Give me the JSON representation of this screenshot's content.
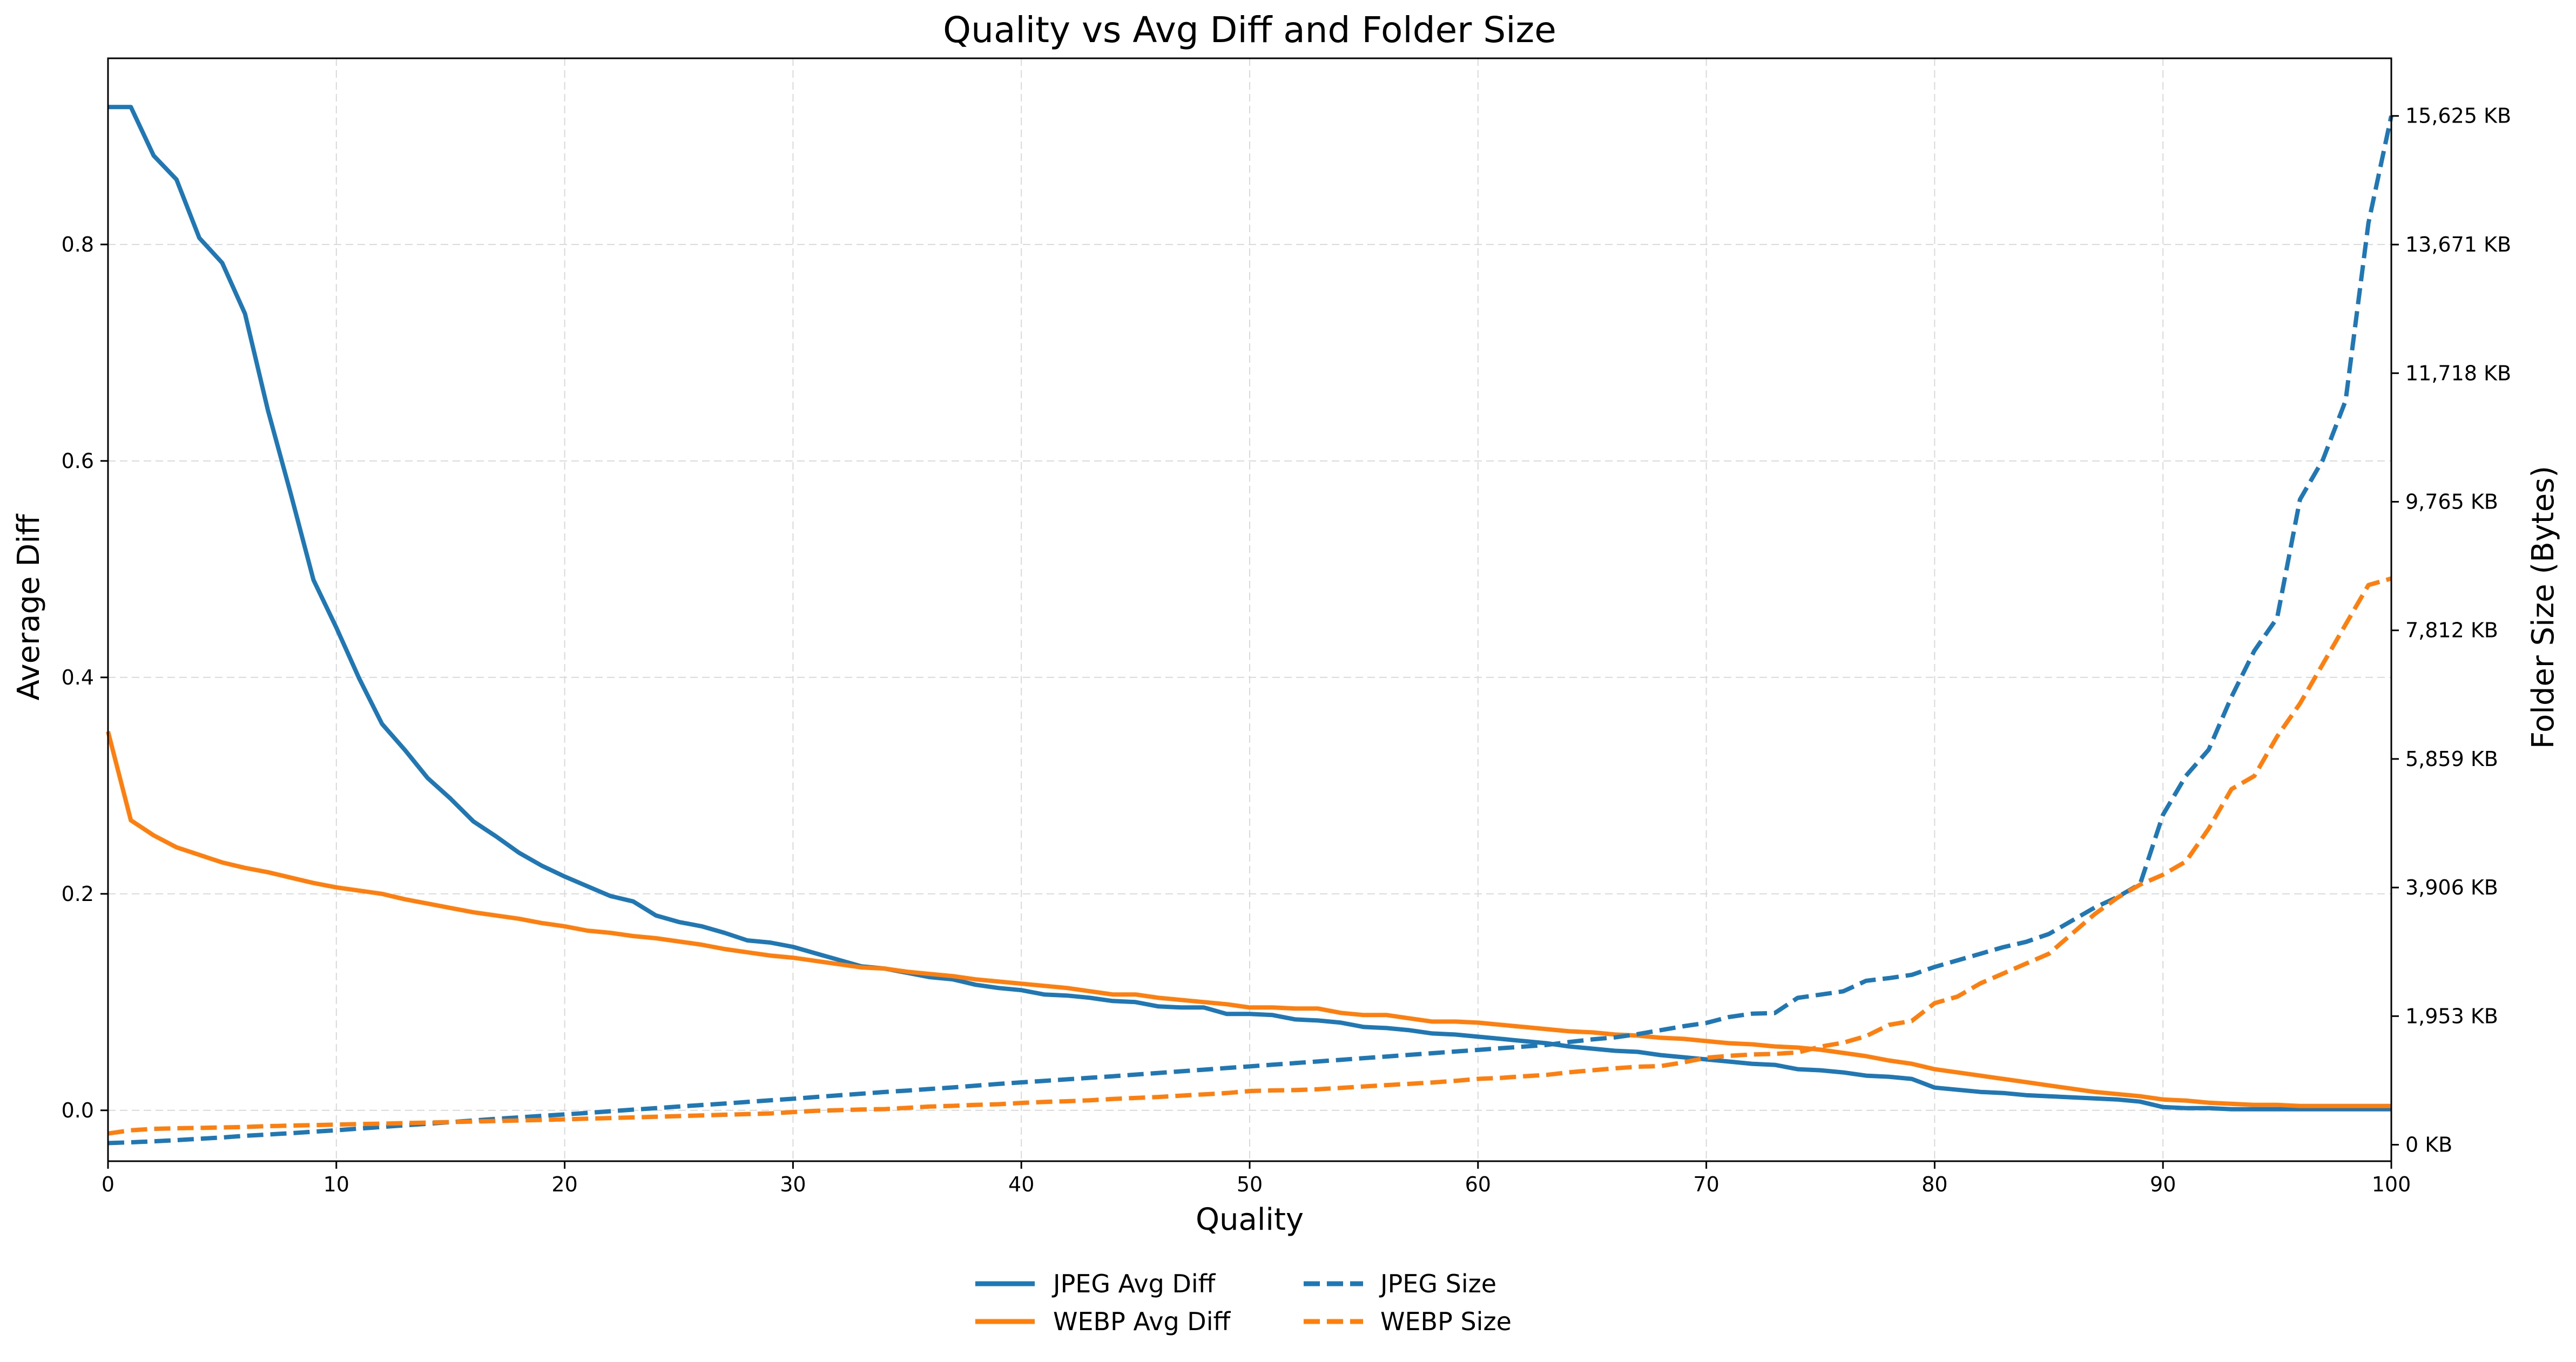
{
  "chart_data": {
    "type": "line",
    "title": "Quality vs Avg Diff and Folder Size",
    "xlabel": "Quality",
    "ylabel": "Average Diff",
    "y2label": "Folder Size (Bytes)",
    "xlim": [
      0,
      100
    ],
    "ylim": [
      -0.047,
      0.972
    ],
    "y2lim_kb": [
      -250,
      16500
    ],
    "grid": true,
    "legend_position": "bottom-center",
    "x_ticks": [
      0,
      10,
      20,
      30,
      40,
      50,
      60,
      70,
      80,
      90,
      100
    ],
    "x_tick_labels": [
      "0",
      "10",
      "20",
      "30",
      "40",
      "50",
      "60",
      "70",
      "80",
      "90",
      "100"
    ],
    "y_ticks": [
      0.0,
      0.2,
      0.4,
      0.6,
      0.8
    ],
    "y_tick_labels": [
      "0.0",
      "0.2",
      "0.4",
      "0.6",
      "0.8"
    ],
    "y2_ticks": [
      0,
      1953,
      3906,
      5859,
      7812,
      9765,
      11718,
      13671,
      15625
    ],
    "y2_tick_labels": [
      "0 KB",
      "1,953 KB",
      "3,906 KB",
      "5,859 KB",
      "7,812 KB",
      "9,765 KB",
      "11,718 KB",
      "13,671 KB",
      "15,625 KB"
    ],
    "x": [
      0,
      1,
      2,
      3,
      4,
      5,
      6,
      7,
      8,
      9,
      10,
      11,
      12,
      13,
      14,
      15,
      16,
      17,
      18,
      19,
      20,
      21,
      22,
      23,
      24,
      25,
      26,
      27,
      28,
      29,
      30,
      31,
      32,
      33,
      34,
      35,
      36,
      37,
      38,
      39,
      40,
      41,
      42,
      43,
      44,
      45,
      46,
      47,
      48,
      49,
      50,
      51,
      52,
      53,
      54,
      55,
      56,
      57,
      58,
      59,
      60,
      61,
      62,
      63,
      64,
      65,
      66,
      67,
      68,
      69,
      70,
      71,
      72,
      73,
      74,
      75,
      76,
      77,
      78,
      79,
      80,
      81,
      82,
      83,
      84,
      85,
      86,
      87,
      88,
      89,
      90,
      91,
      92,
      93,
      94,
      95,
      96,
      97,
      98,
      99,
      100
    ],
    "series": [
      {
        "name": "JPEG Avg Diff",
        "axis": "left",
        "style": "solid",
        "color": "#1f77b4",
        "values": [
          0.927,
          0.927,
          0.882,
          0.86,
          0.806,
          0.783,
          0.736,
          0.647,
          0.57,
          0.49,
          0.446,
          0.399,
          0.357,
          0.333,
          0.307,
          0.288,
          0.267,
          0.253,
          0.238,
          0.226,
          0.216,
          0.207,
          0.198,
          0.193,
          0.18,
          0.174,
          0.17,
          0.164,
          0.157,
          0.155,
          0.151,
          0.145,
          0.139,
          0.133,
          0.131,
          0.127,
          0.123,
          0.121,
          0.116,
          0.113,
          0.111,
          0.107,
          0.106,
          0.104,
          0.101,
          0.1,
          0.096,
          0.095,
          0.095,
          0.089,
          0.089,
          0.088,
          0.084,
          0.083,
          0.081,
          0.077,
          0.076,
          0.074,
          0.071,
          0.07,
          0.068,
          0.066,
          0.064,
          0.062,
          0.059,
          0.057,
          0.055,
          0.054,
          0.051,
          0.049,
          0.047,
          0.045,
          0.043,
          0.042,
          0.038,
          0.037,
          0.035,
          0.032,
          0.031,
          0.029,
          0.021,
          0.019,
          0.017,
          0.016,
          0.014,
          0.013,
          0.012,
          0.011,
          0.01,
          0.008,
          0.003,
          0.002,
          0.002,
          0.001,
          0.001,
          0.001,
          0.001,
          0.001,
          0.001,
          0.001,
          0.001
        ]
      },
      {
        "name": "WEBP Avg Diff",
        "axis": "left",
        "style": "solid",
        "color": "#ff7f0e",
        "values": [
          0.35,
          0.268,
          0.254,
          0.243,
          0.236,
          0.229,
          0.224,
          0.22,
          0.215,
          0.21,
          0.206,
          0.203,
          0.2,
          0.195,
          0.191,
          0.187,
          0.183,
          0.18,
          0.177,
          0.173,
          0.17,
          0.166,
          0.164,
          0.161,
          0.159,
          0.156,
          0.153,
          0.149,
          0.146,
          0.143,
          0.141,
          0.138,
          0.135,
          0.132,
          0.131,
          0.128,
          0.126,
          0.124,
          0.121,
          0.119,
          0.117,
          0.115,
          0.113,
          0.11,
          0.107,
          0.107,
          0.104,
          0.102,
          0.1,
          0.098,
          0.095,
          0.095,
          0.094,
          0.094,
          0.09,
          0.088,
          0.088,
          0.085,
          0.082,
          0.082,
          0.081,
          0.079,
          0.077,
          0.075,
          0.073,
          0.072,
          0.07,
          0.069,
          0.067,
          0.066,
          0.064,
          0.062,
          0.061,
          0.059,
          0.058,
          0.056,
          0.053,
          0.05,
          0.046,
          0.043,
          0.038,
          0.035,
          0.032,
          0.029,
          0.026,
          0.023,
          0.02,
          0.017,
          0.015,
          0.013,
          0.01,
          0.009,
          0.007,
          0.006,
          0.005,
          0.005,
          0.004,
          0.004,
          0.004,
          0.004,
          0.004
        ]
      },
      {
        "name": "JPEG Size",
        "axis": "right",
        "style": "dashed",
        "color": "#1f77b4",
        "unit": "KB",
        "values": [
          25,
          37,
          52,
          70,
          90,
          110,
          135,
          155,
          175,
          198,
          220,
          245,
          270,
          295,
          318,
          343,
          368,
          393,
          415,
          438,
          460,
          483,
          508,
          533,
          555,
          580,
          603,
          625,
          650,
          675,
          698,
          725,
          750,
          775,
          800,
          822,
          847,
          870,
          897,
          923,
          947,
          970,
          993,
          1017,
          1040,
          1065,
          1090,
          1115,
          1140,
          1165,
          1190,
          1215,
          1240,
          1265,
          1290,
          1315,
          1340,
          1365,
          1390,
          1415,
          1440,
          1465,
          1490,
          1515,
          1560,
          1600,
          1630,
          1680,
          1740,
          1800,
          1850,
          1940,
          1990,
          2000,
          2230,
          2280,
          2330,
          2490,
          2530,
          2580,
          2700,
          2800,
          2900,
          3000,
          3080,
          3200,
          3400,
          3600,
          3760,
          3960,
          5010,
          5600,
          6000,
          6800,
          7500,
          8000,
          9800,
          10400,
          11300,
          14000,
          15625
        ]
      },
      {
        "name": "WEBP Size",
        "axis": "right",
        "style": "dashed",
        "color": "#ff7f0e",
        "unit": "KB",
        "values": [
          170,
          220,
          240,
          250,
          255,
          262,
          270,
          282,
          290,
          298,
          305,
          313,
          320,
          328,
          336,
          344,
          352,
          360,
          368,
          376,
          385,
          395,
          405,
          415,
          425,
          435,
          445,
          455,
          465,
          475,
          495,
          515,
          525,
          535,
          540,
          560,
          580,
          590,
          605,
          615,
          635,
          650,
          660,
          675,
          695,
          710,
          725,
          745,
          765,
          785,
          815,
          825,
          830,
          842,
          863,
          885,
          905,
          925,
          945,
          970,
          1000,
          1015,
          1040,
          1060,
          1100,
          1130,
          1160,
          1185,
          1195,
          1250,
          1320,
          1350,
          1370,
          1380,
          1400,
          1490,
          1550,
          1650,
          1820,
          1880,
          2150,
          2250,
          2450,
          2600,
          2750,
          2900,
          3200,
          3500,
          3750,
          3950,
          4100,
          4300,
          4800,
          5400,
          5600,
          6200,
          6700,
          7300,
          7900,
          8500,
          8600
        ]
      }
    ]
  }
}
